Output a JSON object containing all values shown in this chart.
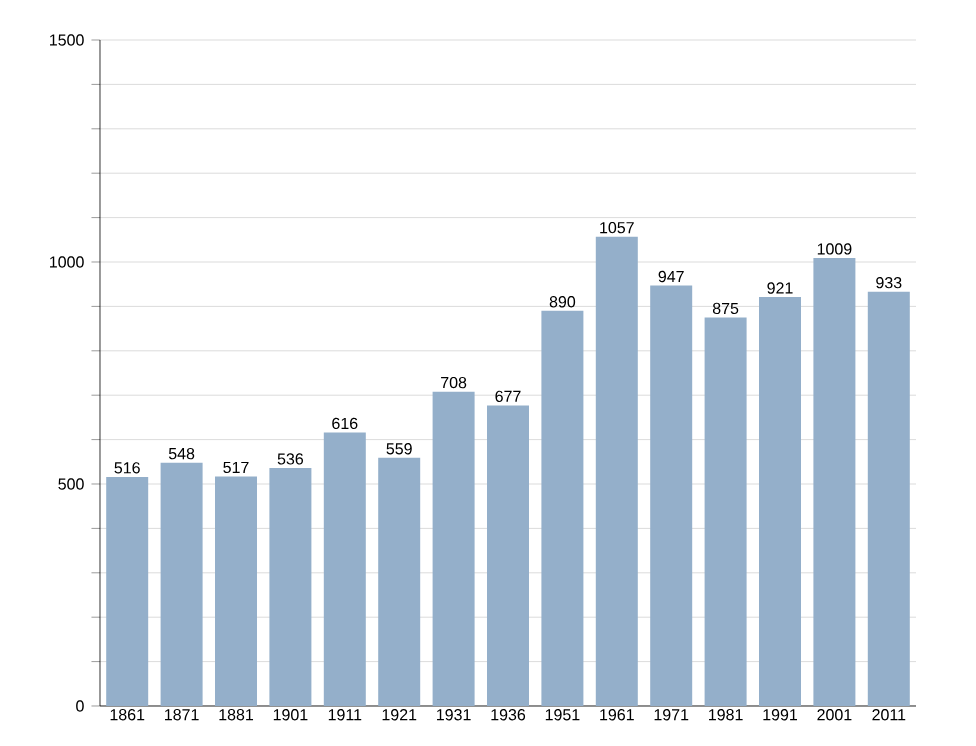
{
  "chart_data": {
    "type": "bar",
    "categories": [
      "1861",
      "1871",
      "1881",
      "1901",
      "1911",
      "1921",
      "1931",
      "1936",
      "1951",
      "1961",
      "1971",
      "1981",
      "1991",
      "2001",
      "2011"
    ],
    "values": [
      516,
      548,
      517,
      536,
      616,
      559,
      708,
      677,
      890,
      1057,
      947,
      875,
      921,
      1009,
      933
    ],
    "color": "#94afca",
    "ylim": [
      0,
      1500
    ],
    "yticks": [
      0,
      {
        "value": 100,
        "label": null
      },
      {
        "value": 200,
        "label": null
      },
      {
        "value": 300,
        "label": null
      },
      {
        "value": 400,
        "label": null
      },
      500,
      {
        "value": 600,
        "label": null
      },
      {
        "value": 700,
        "label": null
      },
      {
        "value": 800,
        "label": null
      },
      {
        "value": 900,
        "label": null
      },
      1000,
      {
        "value": 1100,
        "label": null
      },
      {
        "value": 1200,
        "label": null
      },
      {
        "value": 1300,
        "label": null
      },
      {
        "value": 1400,
        "label": null
      },
      1500
    ],
    "grid": "y",
    "data_labels": true
  }
}
